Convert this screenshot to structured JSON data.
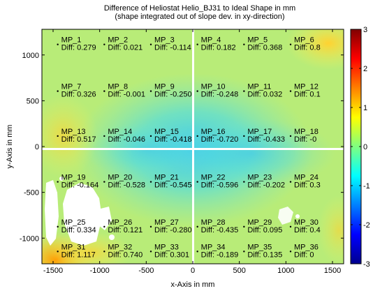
{
  "chart_data": {
    "type": "heatmap",
    "title": "Difference of Heliostat Helio_BJ31 to Ideal Shape in mm",
    "subtitle": "(shape integrated out of slope dev. in xy-direction)",
    "xlabel": "x-Axis in mm",
    "ylabel": "y-Axis in mm",
    "xlim": [
      -1620,
      1620
    ],
    "ylim": [
      -1280,
      1280
    ],
    "x_ticks": [
      -1500,
      -1000,
      -500,
      0,
      500,
      1000,
      1500
    ],
    "y_ticks": [
      1000,
      500,
      0,
      -500,
      -1000
    ],
    "colorbar": {
      "range": [
        -3,
        3
      ],
      "ticks": [
        3,
        2,
        1,
        0,
        -1,
        -2,
        -3
      ],
      "colormap": "jet"
    },
    "grid": false,
    "measurement_points": [
      {
        "name": "MP_1",
        "diff_label": "Diff: 0.279",
        "x": -1450,
        "y": 1130,
        "value": 0.279
      },
      {
        "name": "MP_2",
        "diff_label": "Diff: 0.021",
        "x": -950,
        "y": 1130,
        "value": 0.021
      },
      {
        "name": "MP_3",
        "diff_label": "Diff: -0.114",
        "x": -450,
        "y": 1130,
        "value": -0.114
      },
      {
        "name": "MP_4",
        "diff_label": "Diff: 0.182",
        "x": 50,
        "y": 1130,
        "value": 0.182
      },
      {
        "name": "MP_5",
        "diff_label": "Diff: 0.368",
        "x": 550,
        "y": 1130,
        "value": 0.368
      },
      {
        "name": "MP_6",
        "diff_label": "Diff: 0.8",
        "x": 1050,
        "y": 1130,
        "value": 0.8
      },
      {
        "name": "MP_7",
        "diff_label": "Diff: 0.326",
        "x": -1450,
        "y": 620,
        "value": 0.326
      },
      {
        "name": "MP_8",
        "diff_label": "Diff: -0.001",
        "x": -950,
        "y": 620,
        "value": -0.001
      },
      {
        "name": "MP_9",
        "diff_label": "Diff: -0.250",
        "x": -450,
        "y": 620,
        "value": -0.25
      },
      {
        "name": "MP_10",
        "diff_label": "Diff: -0.248",
        "x": 50,
        "y": 620,
        "value": -0.248
      },
      {
        "name": "MP_11",
        "diff_label": "Diff: 0.032",
        "x": 550,
        "y": 620,
        "value": 0.032
      },
      {
        "name": "MP_12",
        "diff_label": "Diff: 0.1",
        "x": 1050,
        "y": 620,
        "value": 0.1
      },
      {
        "name": "MP_13",
        "diff_label": "Diff: 0.517",
        "x": -1450,
        "y": 130,
        "value": 0.517
      },
      {
        "name": "MP_14",
        "diff_label": "Diff: -0.046",
        "x": -950,
        "y": 130,
        "value": -0.046
      },
      {
        "name": "MP_15",
        "diff_label": "Diff: -0.418",
        "x": -450,
        "y": 130,
        "value": -0.418
      },
      {
        "name": "MP_16",
        "diff_label": "Diff: -0.720",
        "x": 50,
        "y": 130,
        "value": -0.72
      },
      {
        "name": "MP_17",
        "diff_label": "Diff: -0.433",
        "x": 550,
        "y": 130,
        "value": -0.433
      },
      {
        "name": "MP_18",
        "diff_label": "Diff: -0",
        "x": 1050,
        "y": 130,
        "value": -0.5
      },
      {
        "name": "MP_19",
        "diff_label": "Diff: -0.164",
        "x": -1450,
        "y": -370,
        "value": -0.164
      },
      {
        "name": "MP_20",
        "diff_label": "Diff: -0.528",
        "x": -950,
        "y": -370,
        "value": -0.528
      },
      {
        "name": "MP_21",
        "diff_label": "Diff: -0.545",
        "x": -450,
        "y": -370,
        "value": -0.545
      },
      {
        "name": "MP_22",
        "diff_label": "Diff: -0.596",
        "x": 50,
        "y": -370,
        "value": -0.596
      },
      {
        "name": "MP_23",
        "diff_label": "Diff: -0.202",
        "x": 550,
        "y": -370,
        "value": -0.202
      },
      {
        "name": "MP_24",
        "diff_label": "Diff: 0.3",
        "x": 1050,
        "y": -370,
        "value": 0.3
      },
      {
        "name": "MP_25",
        "diff_label": "Diff: 0.334",
        "x": -1450,
        "y": -860,
        "value": 0.334
      },
      {
        "name": "MP_26",
        "diff_label": "Diff: 0.121",
        "x": -950,
        "y": -860,
        "value": 0.121
      },
      {
        "name": "MP_27",
        "diff_label": "Diff: -0.280",
        "x": -450,
        "y": -860,
        "value": -0.28
      },
      {
        "name": "MP_28",
        "diff_label": "Diff: -0.435",
        "x": 50,
        "y": -860,
        "value": -0.435
      },
      {
        "name": "MP_29",
        "diff_label": "Diff: 0.095",
        "x": 550,
        "y": -860,
        "value": 0.095
      },
      {
        "name": "MP_30",
        "diff_label": "Diff: 0.4",
        "x": 1050,
        "y": -860,
        "value": 0.4
      },
      {
        "name": "MP_31",
        "diff_label": "Diff: 1.117",
        "x": -1450,
        "y": -1130,
        "value": 1.117
      },
      {
        "name": "MP_32",
        "diff_label": "Diff: 0.740",
        "x": -950,
        "y": -1130,
        "value": 0.74
      },
      {
        "name": "MP_33",
        "diff_label": "Diff: 0.301",
        "x": -450,
        "y": -1130,
        "value": 0.301
      },
      {
        "name": "MP_34",
        "diff_label": "Diff: -0.189",
        "x": 50,
        "y": -1130,
        "value": -0.189
      },
      {
        "name": "MP_35",
        "diff_label": "Diff: 0.135",
        "x": 550,
        "y": -1130,
        "value": 0.135
      },
      {
        "name": "MP_36",
        "diff_label": "Diff: 0",
        "x": 1050,
        "y": -1130,
        "value": 0.3
      }
    ]
  }
}
